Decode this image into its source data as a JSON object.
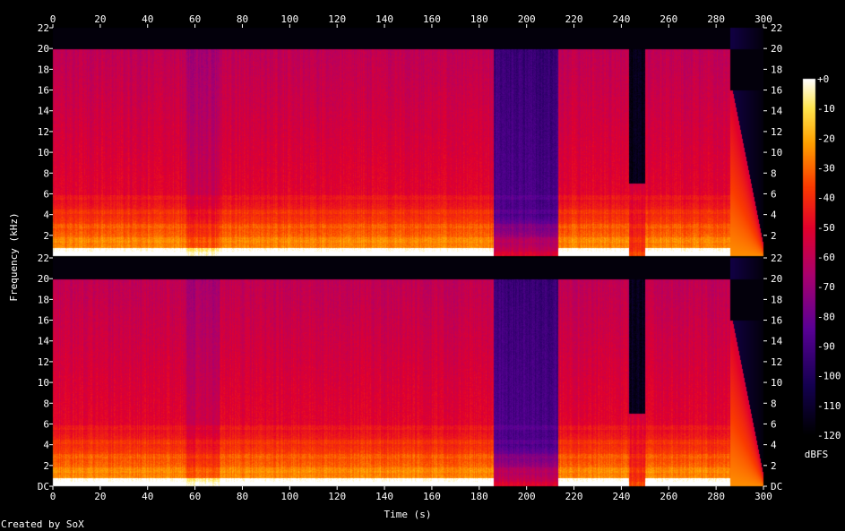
{
  "chart_data": {
    "type": "heatmap",
    "title": "",
    "xlabel": "Time (s)",
    "ylabel": "Frequency (kHz)",
    "xlim": [
      0,
      300
    ],
    "ylim": [
      0,
      22
    ],
    "x_ticks": [
      "0",
      "20",
      "40",
      "60",
      "80",
      "100",
      "120",
      "140",
      "160",
      "180",
      "200",
      "220",
      "240",
      "260",
      "280",
      "300"
    ],
    "y_ticks_top": [
      "22",
      "20",
      "18",
      "16",
      "14",
      "12",
      "10",
      "8",
      "6",
      "4",
      "2"
    ],
    "y_ticks_bottom": [
      "22",
      "20",
      "18",
      "16",
      "14",
      "12",
      "10",
      "8",
      "6",
      "4",
      "2",
      "DC"
    ],
    "channels": 2,
    "colorbar": {
      "label": "dBFS",
      "ticks": [
        "+0",
        "-10",
        "-20",
        "-30",
        "-40",
        "-50",
        "-60",
        "-70",
        "-80",
        "-90",
        "-100",
        "-110",
        "-120"
      ],
      "range_db": [
        -120,
        0
      ]
    },
    "segments_time_s": [
      {
        "start": 0,
        "end": 28,
        "level": "loud"
      },
      {
        "start": 28,
        "end": 56,
        "level": "loud"
      },
      {
        "start": 56,
        "end": 70,
        "level": "medium"
      },
      {
        "start": 70,
        "end": 128,
        "level": "loud"
      },
      {
        "start": 128,
        "end": 186,
        "level": "loud"
      },
      {
        "start": 186,
        "end": 213,
        "level": "quiet"
      },
      {
        "start": 213,
        "end": 243,
        "level": "loud"
      },
      {
        "start": 243,
        "end": 250,
        "level": "very-quiet"
      },
      {
        "start": 250,
        "end": 286,
        "level": "loud"
      },
      {
        "start": 286,
        "end": 300,
        "level": "fade-out"
      }
    ],
    "lowpass_cutoff_khz": 20
  },
  "footer": {
    "credit": "Created by SoX"
  }
}
